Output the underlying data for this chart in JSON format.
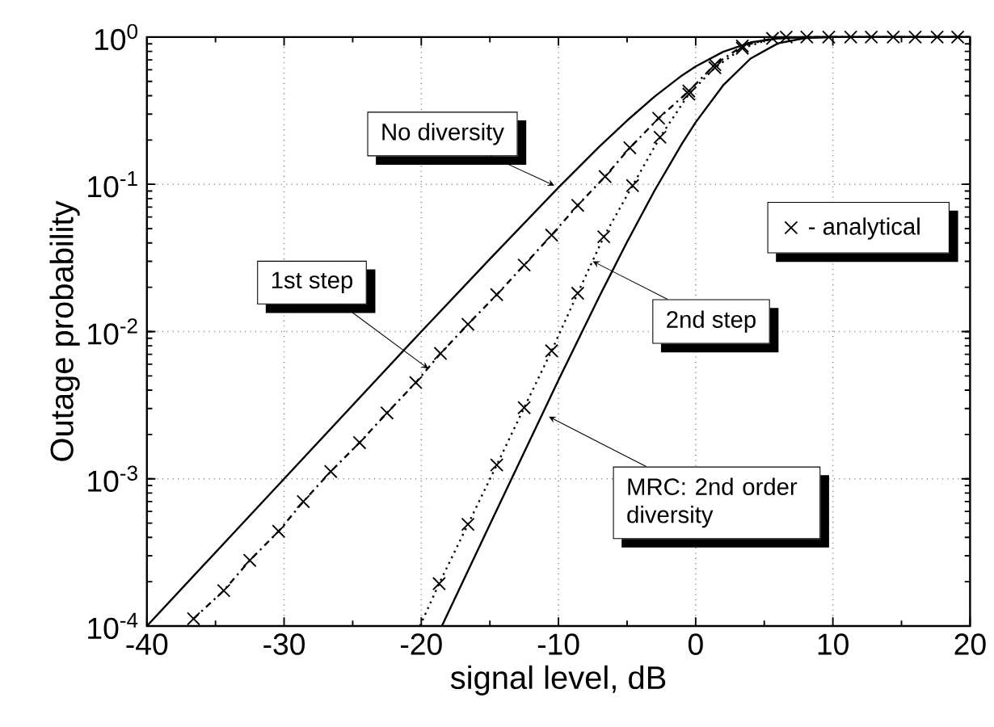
{
  "chart_data": {
    "type": "line",
    "xlabel": "signal level, dB",
    "ylabel": "Outage probability",
    "log": "y",
    "grid": true,
    "legend": "right",
    "xlim": [
      -40,
      20
    ],
    "ylim": [
      0.0001,
      1
    ],
    "xticks": [
      -40,
      -30,
      -20,
      -10,
      0,
      10,
      20
    ],
    "yticks": [
      {
        "value": 0.0001,
        "label": "10$^{-4}$"
      },
      {
        "value": 0.001,
        "label": "10$^{-3}$"
      },
      {
        "value": 0.01,
        "label": "10$^{-2}$"
      },
      {
        "value": 0.1,
        "label": "10$^{-1}$"
      },
      {
        "value": 1,
        "label": "10$^{0}$"
      }
    ],
    "series": [
      {
        "type": "line",
        "color": "#000000",
        "line_style": "solid",
        "x": [
          -40,
          -30,
          -20,
          -15,
          -10,
          -7,
          -5,
          -3,
          -1,
          0,
          2,
          4,
          6,
          8,
          10,
          20
        ],
        "values": [
          0.0001,
          0.001,
          0.01,
          0.0311,
          0.0952,
          0.181,
          0.271,
          0.394,
          0.549,
          0.632,
          0.795,
          0.92,
          0.981,
          0.998,
          1,
          1
        ]
      },
      {
        "type": "line",
        "color": "#000000",
        "line_style": "dashdot",
        "x": [
          -36.6,
          -34.4,
          -32.5,
          -30.4,
          -28.6,
          -26.6,
          -24.5,
          -22.5,
          -20.4,
          -18.6,
          -16.6,
          -14.5,
          -12.5,
          -10.5,
          -8.6,
          -6.6,
          -4.8,
          -2.7,
          -0.5,
          1.4,
          3.4,
          5.6,
          8,
          20
        ],
        "values": [
          0.000112,
          0.000174,
          0.000279,
          0.00044,
          0.0007,
          0.00112,
          0.00176,
          0.0028,
          0.0045,
          0.0071,
          0.0112,
          0.0178,
          0.0283,
          0.0452,
          0.072,
          0.113,
          0.177,
          0.281,
          0.43,
          0.65,
          0.87,
          0.98,
          1,
          1
        ]
      },
      {
        "type": "line",
        "color": "#000000",
        "line_style": "dotted",
        "x": [
          -20.1,
          -18.7,
          -16.6,
          -14.5,
          -12.5,
          -10.5,
          -8.6,
          -6.7,
          -4.6,
          -2.6,
          -0.5,
          1.4,
          3.4,
          5.6,
          8,
          20
        ],
        "values": [
          0.0001,
          0.000194,
          0.00049,
          0.00124,
          0.00304,
          0.0074,
          0.0182,
          0.044,
          0.098,
          0.209,
          0.41,
          0.62,
          0.84,
          0.98,
          1,
          1
        ]
      },
      {
        "type": "line",
        "color": "#000000",
        "line_style": "solid",
        "x": [
          -18.5,
          -15,
          -10,
          -7,
          -5,
          -3,
          -1,
          0,
          2,
          4,
          6,
          8,
          10,
          20
        ],
        "values": [
          0.0001,
          0.00049,
          0.00468,
          0.0175,
          0.0406,
          0.0906,
          0.189,
          0.264,
          0.47,
          0.715,
          0.907,
          0.987,
          1,
          1
        ]
      },
      {
        "type": "scatter",
        "name": "- analytical",
        "color": "#000000",
        "marker": "cross",
        "x": [
          -36.6,
          -34.4,
          -32.5,
          -30.4,
          -28.6,
          -26.6,
          -24.5,
          -22.5,
          -20.4,
          -18.6,
          -16.6,
          -14.5,
          -12.5,
          -10.5,
          -8.6,
          -6.6,
          -4.8,
          -2.7,
          -0.5,
          1.4,
          3.4,
          -18.7,
          -16.6,
          -14.5,
          -12.5,
          -10.5,
          -8.6,
          -6.7,
          -4.6,
          -2.6,
          -0.5,
          1.4,
          3.4,
          5.6,
          6.6,
          8.1,
          9.7,
          11.3,
          12.8,
          14.4,
          16.0,
          17.6,
          19.1
        ],
        "values": [
          0.000112,
          0.000174,
          0.000279,
          0.00044,
          0.0007,
          0.00112,
          0.00176,
          0.0028,
          0.0045,
          0.0071,
          0.0112,
          0.0178,
          0.0283,
          0.0452,
          0.072,
          0.113,
          0.177,
          0.281,
          0.43,
          0.65,
          0.87,
          0.000194,
          0.00049,
          0.00124,
          0.00304,
          0.0074,
          0.0182,
          0.044,
          0.098,
          0.209,
          0.41,
          0.62,
          0.84,
          0.98,
          1,
          1,
          1,
          1,
          1,
          1,
          1,
          1,
          1
        ]
      }
    ],
    "annotations": [
      {
        "text": "No diversity",
        "x": -10.3,
        "y": 0.098
      },
      {
        "text": "1st step",
        "x": -19.5,
        "y": 0.0056
      },
      {
        "text": "2nd step",
        "x": -7.5,
        "y": 0.03
      },
      {
        "text": "MRC: 2nd order diversity",
        "x": -10.7,
        "y": 0.00264
      }
    ]
  }
}
